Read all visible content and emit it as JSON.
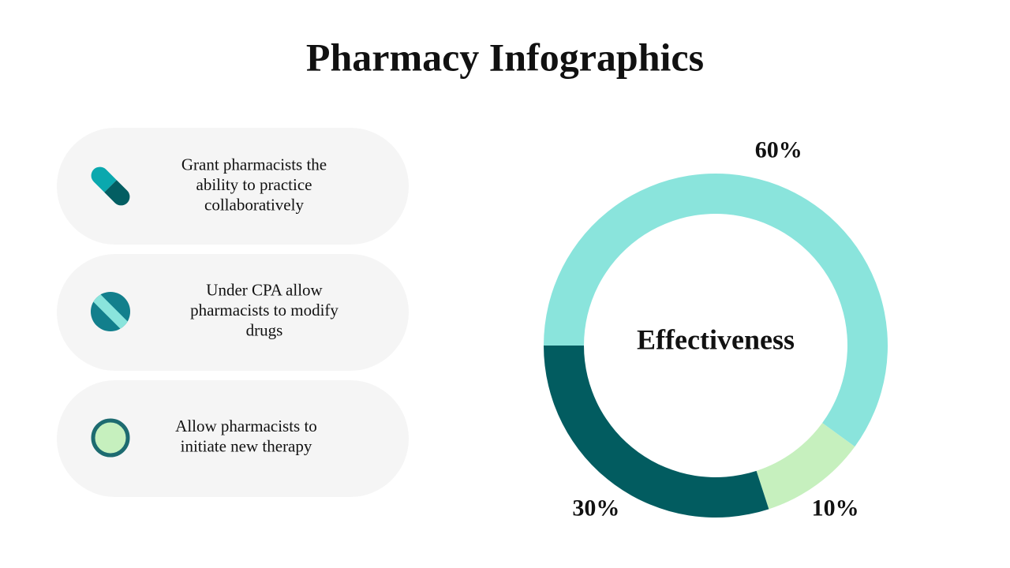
{
  "title": "Pharmacy Infographics",
  "items": [
    {
      "lines": [
        "Grant pharmacists the",
        "ability to practice",
        "collaboratively"
      ]
    },
    {
      "lines": [
        "Under CPA allow",
        "pharmacists to modify",
        "drugs"
      ]
    },
    {
      "lines": [
        "Allow pharmacists to",
        "initiate new therapy"
      ]
    }
  ],
  "chart_data": {
    "type": "donut",
    "center_label": "Effectiveness",
    "values": [
      60,
      10,
      30
    ],
    "value_labels": [
      "60%",
      "10%",
      "30%"
    ],
    "colors": [
      "#8ae4dc",
      "#c6f0be",
      "#025c60"
    ]
  }
}
